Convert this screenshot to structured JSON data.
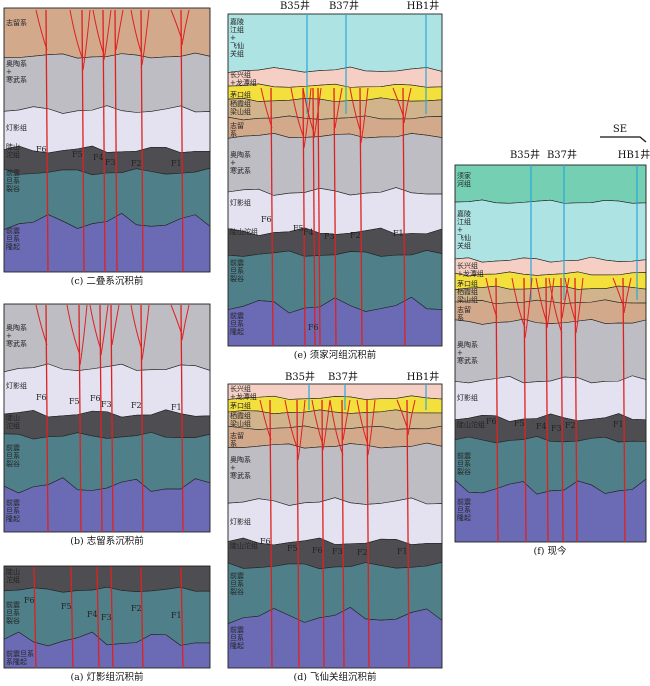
{
  "colors": {
    "zhiliu": "#d3a98c",
    "aoc": "#bdbdc3",
    "dengying": "#e4e2f0",
    "luoshanlao": "#4e4e52",
    "sinianRift": "#4f7f88",
    "sinianUplift": "#6b6bb5",
    "jialing": "#aee3e3",
    "xujiahe": "#74cfb3",
    "changxing": "#f5cfc4",
    "maokou": "#f3e03d",
    "qixia": "#cbb38a",
    "fault": "#e02020",
    "wellLine": "#29a8d8"
  },
  "panels": [
    {
      "id": "c",
      "caption": "(c) 二叠系沉积前",
      "faults": [
        "F6",
        "F5",
        "F4",
        "F3",
        "F2",
        "F1"
      ]
    },
    {
      "id": "b",
      "caption": "(b) 志留系沉积前",
      "faults": [
        "F6",
        "F5",
        "F6",
        "F3",
        "F2",
        "F1"
      ]
    },
    {
      "id": "a",
      "caption": "(a) 灯影组沉积前",
      "faults": [
        "F6",
        "F5",
        "F4",
        "F3",
        "F2",
        "F1"
      ]
    },
    {
      "id": "e",
      "caption": "(e) 须家河组沉积前",
      "wells": [
        "B35井",
        "B37井",
        "HB1井"
      ],
      "faults": [
        "F6",
        "F5",
        "F4",
        "F3",
        "F2",
        "F1",
        "F6"
      ]
    },
    {
      "id": "d",
      "caption": "(d) 飞仙关组沉积前",
      "wells": [
        "B35井",
        "B37井",
        "HB1井"
      ],
      "faults": [
        "F6",
        "F5",
        "F6",
        "F3",
        "F2",
        "F1"
      ]
    },
    {
      "id": "f",
      "caption": "(f) 现今",
      "wells": [
        "B35井",
        "B37井",
        "HB1井"
      ],
      "faults": [
        "F6",
        "F5",
        "F4",
        "F3",
        "F2",
        "F1"
      ],
      "direction": "SE"
    }
  ],
  "layers": {
    "zhiliu": "志留系",
    "aoc": "奥陶系+寒武系",
    "dengying": "灯影组",
    "luoshanlao": "陡山沱组",
    "rift": "前震旦系裂谷",
    "uplift": "前震旦隆起",
    "uplift_a": "前震旦系隆起",
    "jialing": "嘉陵江组+飞仙关组",
    "xujiahe": "须家河组",
    "changxing": "长兴组+龙潭组",
    "maokou": "茅口组",
    "qixia": "栖霞组梁山组"
  }
}
